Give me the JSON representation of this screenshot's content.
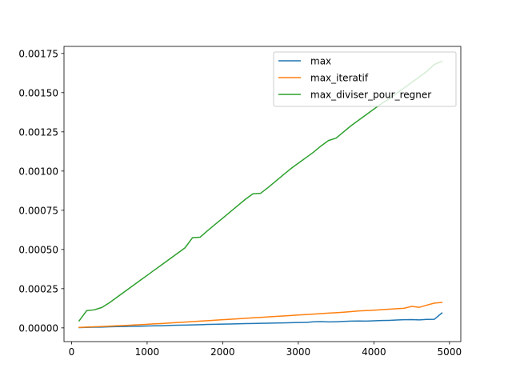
{
  "chart_data": {
    "type": "line",
    "title": "",
    "xlabel": "",
    "ylabel": "",
    "xlim": [
      -100,
      5150
    ],
    "ylim": [
      -8.75e-05,
      0.001795
    ],
    "x_ticks": [
      0,
      1000,
      2000,
      3000,
      4000,
      5000
    ],
    "x_tick_labels": [
      "0",
      "1000",
      "2000",
      "3000",
      "4000",
      "5000"
    ],
    "y_ticks": [
      0,
      0.00025,
      0.0005,
      0.00075,
      0.001,
      0.00125,
      0.0015,
      0.00175
    ],
    "y_tick_labels": [
      "0.00000",
      "0.00025",
      "0.00050",
      "0.00075",
      "0.00100",
      "0.00125",
      "0.00150",
      "0.00175"
    ],
    "grid": false,
    "legend_position": "top-right",
    "x": [
      100,
      200,
      300,
      400,
      500,
      600,
      700,
      800,
      900,
      1000,
      1100,
      1200,
      1300,
      1400,
      1500,
      1600,
      1700,
      1800,
      1900,
      2000,
      2100,
      2200,
      2300,
      2400,
      2500,
      2600,
      2700,
      2800,
      2900,
      3000,
      3100,
      3200,
      3300,
      3400,
      3500,
      3600,
      3700,
      3800,
      3900,
      4000,
      4100,
      4200,
      4300,
      4400,
      4500,
      4600,
      4700,
      4800,
      4900
    ],
    "series": [
      {
        "name": "max",
        "color": "#1f77b4",
        "values": [
          2e-06,
          3e-06,
          4e-06,
          5e-06,
          7e-06,
          8e-06,
          9e-06,
          1e-05,
          1.1e-05,
          1.2e-05,
          1.3e-05,
          1.4e-05,
          1.6e-05,
          1.7e-05,
          1.8e-05,
          1.9e-05,
          2e-05,
          2.2e-05,
          2.3e-05,
          2.4e-05,
          2.5e-05,
          2.6e-05,
          2.7e-05,
          2.8e-05,
          2.9e-05,
          3e-05,
          3.1e-05,
          3.2e-05,
          3.3e-05,
          3.4e-05,
          3.5e-05,
          3.9e-05,
          4e-05,
          3.8e-05,
          3.9e-05,
          4.1e-05,
          4.3e-05,
          4.4e-05,
          4.3e-05,
          4.5e-05,
          4.7e-05,
          4.8e-05,
          5e-05,
          5.2e-05,
          5.3e-05,
          5.1e-05,
          5.4e-05,
          5.5e-05,
          9.5e-05
        ]
      },
      {
        "name": "max_iteratif",
        "color": "#ff7f0e",
        "values": [
          3e-06,
          5e-06,
          7e-06,
          9e-06,
          1.1e-05,
          1.3e-05,
          1.5e-05,
          1.8e-05,
          2e-05,
          2.3e-05,
          2.6e-05,
          2.8e-05,
          3.1e-05,
          3.4e-05,
          3.7e-05,
          4e-05,
          4.3e-05,
          4.6e-05,
          4.9e-05,
          5.2e-05,
          5.5e-05,
          5.8e-05,
          6.1e-05,
          6.4e-05,
          6.7e-05,
          7e-05,
          7.3e-05,
          7.6e-05,
          7.9e-05,
          8.2e-05,
          8.5e-05,
          8.8e-05,
          9.1e-05,
          9.4e-05,
          9.7e-05,
          0.0001,
          0.000104,
          0.000108,
          0.00011,
          0.000113,
          0.000116,
          0.000119,
          0.000122,
          0.000125,
          0.000137,
          0.000131,
          0.000145,
          0.000158,
          0.000162
        ]
      },
      {
        "name": "max_diviser_pour_regner",
        "color": "#2ca02c",
        "values": [
          4.5e-05,
          0.00011,
          0.000115,
          0.00013,
          0.00016,
          0.000195,
          0.00023,
          0.000265,
          0.0003,
          0.000335,
          0.00037,
          0.000405,
          0.00044,
          0.000475,
          0.00051,
          0.000575,
          0.000578,
          0.00062,
          0.00066,
          0.0007,
          0.00074,
          0.00078,
          0.00082,
          0.000855,
          0.000858,
          0.000895,
          0.000935,
          0.000975,
          0.001015,
          0.00105,
          0.001085,
          0.00112,
          0.00116,
          0.001195,
          0.00121,
          0.00125,
          0.00129,
          0.001325,
          0.00136,
          0.001395,
          0.00143,
          0.00146,
          0.001495,
          0.00153,
          0.001565,
          0.0016,
          0.001635,
          0.00168,
          0.0017
        ]
      }
    ]
  }
}
